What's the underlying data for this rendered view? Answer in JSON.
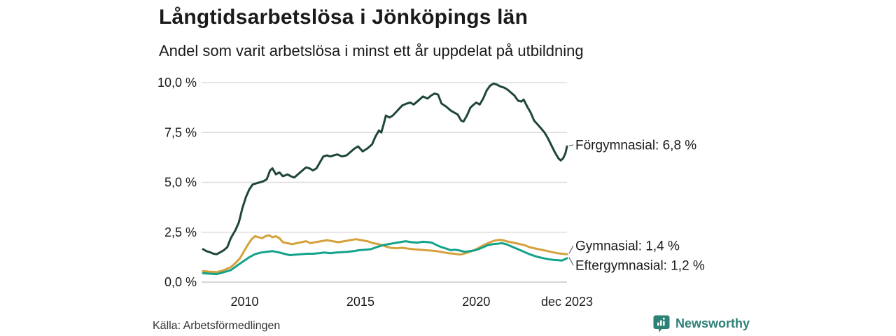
{
  "header": {
    "title": "Långtidsarbetslösa i Jönköpings län",
    "subtitle": "Andel som varit arbetslösa i minst ett år uppdelat på utbildning"
  },
  "footer": {
    "source": "Källa: Arbetsförmedlingen",
    "brand": "Newsworthy"
  },
  "colors": {
    "forgymnasial": "#1e4639",
    "gymnasial": "#d4a13c",
    "eftergymnasial": "#13a28a",
    "gridline": "#dedede",
    "zero_line": "#c9c9c9",
    "text": "#1a1a1a",
    "connector": "#666666",
    "brand_teal": "#2e8177"
  },
  "chart_data": {
    "type": "line",
    "title": "Långtidsarbetslösa i Jönköpings län",
    "subtitle": "Andel som varit arbetslösa i minst ett år uppdelat på utbildning",
    "xlabel": "",
    "ylabel": "",
    "xlim": [
      2008.2,
      2023.92
    ],
    "ylim": [
      0,
      10
    ],
    "grid": "horizontal",
    "legend_position": "end-of-line-labels",
    "yticks": [
      {
        "value": 0,
        "label": "0,0 %"
      },
      {
        "value": 2.5,
        "label": "2,5 %"
      },
      {
        "value": 5,
        "label": "5,0 %"
      },
      {
        "value": 7.5,
        "label": "7,5 %"
      },
      {
        "value": 10,
        "label": "10,0 %"
      }
    ],
    "xticks": [
      {
        "value": 2010,
        "label": "2010"
      },
      {
        "value": 2015,
        "label": "2015"
      },
      {
        "value": 2020,
        "label": "2020"
      },
      {
        "value": 2023.92,
        "label": "dec 2023"
      }
    ],
    "series": [
      {
        "name": "Förgymnasial",
        "end_value": "6,8 %",
        "end_label": "Förgymnasial: 6,8 %",
        "color": "#1e4639",
        "points": [
          [
            2008.2,
            1.65
          ],
          [
            2008.35,
            1.55
          ],
          [
            2008.5,
            1.5
          ],
          [
            2008.65,
            1.42
          ],
          [
            2008.8,
            1.4
          ],
          [
            2008.95,
            1.5
          ],
          [
            2009.1,
            1.6
          ],
          [
            2009.25,
            1.75
          ],
          [
            2009.4,
            2.2
          ],
          [
            2009.6,
            2.6
          ],
          [
            2009.75,
            3.0
          ],
          [
            2009.9,
            3.7
          ],
          [
            2010.05,
            4.25
          ],
          [
            2010.2,
            4.65
          ],
          [
            2010.35,
            4.9
          ],
          [
            2010.5,
            4.95
          ],
          [
            2010.65,
            5.0
          ],
          [
            2010.8,
            5.05
          ],
          [
            2010.95,
            5.15
          ],
          [
            2011.1,
            5.6
          ],
          [
            2011.2,
            5.7
          ],
          [
            2011.35,
            5.4
          ],
          [
            2011.5,
            5.5
          ],
          [
            2011.65,
            5.3
          ],
          [
            2011.85,
            5.4
          ],
          [
            2012.0,
            5.3
          ],
          [
            2012.15,
            5.25
          ],
          [
            2012.3,
            5.4
          ],
          [
            2012.5,
            5.6
          ],
          [
            2012.65,
            5.75
          ],
          [
            2012.8,
            5.7
          ],
          [
            2012.95,
            5.6
          ],
          [
            2013.1,
            5.7
          ],
          [
            2013.25,
            6.0
          ],
          [
            2013.4,
            6.3
          ],
          [
            2013.55,
            6.35
          ],
          [
            2013.7,
            6.3
          ],
          [
            2013.85,
            6.35
          ],
          [
            2014.0,
            6.4
          ],
          [
            2014.2,
            6.3
          ],
          [
            2014.4,
            6.35
          ],
          [
            2014.6,
            6.55
          ],
          [
            2014.75,
            6.7
          ],
          [
            2014.9,
            6.8
          ],
          [
            2015.1,
            6.55
          ],
          [
            2015.3,
            6.7
          ],
          [
            2015.5,
            6.9
          ],
          [
            2015.65,
            7.3
          ],
          [
            2015.8,
            7.6
          ],
          [
            2015.9,
            7.5
          ],
          [
            2016.0,
            7.9
          ],
          [
            2016.1,
            8.35
          ],
          [
            2016.25,
            8.25
          ],
          [
            2016.4,
            8.35
          ],
          [
            2016.6,
            8.6
          ],
          [
            2016.8,
            8.85
          ],
          [
            2017.0,
            8.95
          ],
          [
            2017.15,
            9.0
          ],
          [
            2017.3,
            8.9
          ],
          [
            2017.5,
            9.1
          ],
          [
            2017.7,
            9.3
          ],
          [
            2017.9,
            9.2
          ],
          [
            2018.05,
            9.35
          ],
          [
            2018.2,
            9.45
          ],
          [
            2018.35,
            9.4
          ],
          [
            2018.5,
            8.95
          ],
          [
            2018.7,
            8.8
          ],
          [
            2018.9,
            8.6
          ],
          [
            2019.05,
            8.5
          ],
          [
            2019.2,
            8.4
          ],
          [
            2019.35,
            8.1
          ],
          [
            2019.45,
            8.05
          ],
          [
            2019.6,
            8.35
          ],
          [
            2019.75,
            8.75
          ],
          [
            2019.9,
            8.9
          ],
          [
            2020.0,
            9.0
          ],
          [
            2020.15,
            8.9
          ],
          [
            2020.3,
            9.2
          ],
          [
            2020.45,
            9.6
          ],
          [
            2020.6,
            9.85
          ],
          [
            2020.75,
            9.95
          ],
          [
            2020.9,
            9.9
          ],
          [
            2021.05,
            9.8
          ],
          [
            2021.2,
            9.75
          ],
          [
            2021.35,
            9.65
          ],
          [
            2021.5,
            9.5
          ],
          [
            2021.65,
            9.35
          ],
          [
            2021.8,
            9.1
          ],
          [
            2021.95,
            9.05
          ],
          [
            2022.05,
            9.15
          ],
          [
            2022.2,
            8.8
          ],
          [
            2022.35,
            8.5
          ],
          [
            2022.5,
            8.1
          ],
          [
            2022.65,
            7.9
          ],
          [
            2022.8,
            7.7
          ],
          [
            2022.95,
            7.5
          ],
          [
            2023.1,
            7.2
          ],
          [
            2023.25,
            6.85
          ],
          [
            2023.4,
            6.5
          ],
          [
            2023.55,
            6.2
          ],
          [
            2023.65,
            6.1
          ],
          [
            2023.75,
            6.2
          ],
          [
            2023.85,
            6.45
          ],
          [
            2023.92,
            6.8
          ]
        ]
      },
      {
        "name": "Gymnasial",
        "end_value": "1,4 %",
        "end_label": "Gymnasial: 1,4 %",
        "color": "#d4a13c",
        "points": [
          [
            2008.2,
            0.55
          ],
          [
            2008.5,
            0.52
          ],
          [
            2008.8,
            0.5
          ],
          [
            2009.1,
            0.6
          ],
          [
            2009.4,
            0.75
          ],
          [
            2009.6,
            0.95
          ],
          [
            2009.8,
            1.2
          ],
          [
            2010.0,
            1.6
          ],
          [
            2010.15,
            1.9
          ],
          [
            2010.3,
            2.15
          ],
          [
            2010.45,
            2.3
          ],
          [
            2010.6,
            2.25
          ],
          [
            2010.75,
            2.2
          ],
          [
            2010.9,
            2.3
          ],
          [
            2011.05,
            2.35
          ],
          [
            2011.2,
            2.25
          ],
          [
            2011.35,
            2.3
          ],
          [
            2011.5,
            2.2
          ],
          [
            2011.65,
            2.0
          ],
          [
            2011.85,
            1.95
          ],
          [
            2012.05,
            1.9
          ],
          [
            2012.25,
            1.95
          ],
          [
            2012.45,
            2.0
          ],
          [
            2012.65,
            2.05
          ],
          [
            2012.85,
            1.95
          ],
          [
            2013.05,
            2.0
          ],
          [
            2013.3,
            2.05
          ],
          [
            2013.55,
            2.1
          ],
          [
            2013.8,
            2.05
          ],
          [
            2014.05,
            2.0
          ],
          [
            2014.3,
            2.05
          ],
          [
            2014.55,
            2.1
          ],
          [
            2014.8,
            2.15
          ],
          [
            2015.05,
            2.1
          ],
          [
            2015.3,
            2.05
          ],
          [
            2015.55,
            1.95
          ],
          [
            2015.8,
            1.9
          ],
          [
            2016.05,
            1.8
          ],
          [
            2016.3,
            1.72
          ],
          [
            2016.55,
            1.7
          ],
          [
            2016.8,
            1.72
          ],
          [
            2017.05,
            1.68
          ],
          [
            2017.3,
            1.65
          ],
          [
            2017.55,
            1.62
          ],
          [
            2017.8,
            1.6
          ],
          [
            2018.05,
            1.58
          ],
          [
            2018.3,
            1.55
          ],
          [
            2018.55,
            1.5
          ],
          [
            2018.8,
            1.45
          ],
          [
            2019.05,
            1.42
          ],
          [
            2019.3,
            1.38
          ],
          [
            2019.55,
            1.45
          ],
          [
            2019.8,
            1.55
          ],
          [
            2020.0,
            1.65
          ],
          [
            2020.2,
            1.78
          ],
          [
            2020.4,
            1.9
          ],
          [
            2020.6,
            2.0
          ],
          [
            2020.8,
            2.08
          ],
          [
            2021.0,
            2.12
          ],
          [
            2021.15,
            2.1
          ],
          [
            2021.3,
            2.05
          ],
          [
            2021.5,
            2.0
          ],
          [
            2021.7,
            1.95
          ],
          [
            2021.9,
            1.9
          ],
          [
            2022.1,
            1.85
          ],
          [
            2022.3,
            1.75
          ],
          [
            2022.5,
            1.7
          ],
          [
            2022.7,
            1.65
          ],
          [
            2022.9,
            1.6
          ],
          [
            2023.1,
            1.55
          ],
          [
            2023.3,
            1.5
          ],
          [
            2023.5,
            1.45
          ],
          [
            2023.7,
            1.42
          ],
          [
            2023.92,
            1.4
          ]
        ]
      },
      {
        "name": "Eftergymnasial",
        "end_value": "1,2 %",
        "end_label": "Eftergymnasial: 1,2 %",
        "color": "#13a28a",
        "points": [
          [
            2008.2,
            0.45
          ],
          [
            2008.5,
            0.42
          ],
          [
            2008.8,
            0.4
          ],
          [
            2009.1,
            0.5
          ],
          [
            2009.4,
            0.6
          ],
          [
            2009.7,
            0.85
          ],
          [
            2009.95,
            1.05
          ],
          [
            2010.2,
            1.25
          ],
          [
            2010.45,
            1.4
          ],
          [
            2010.7,
            1.48
          ],
          [
            2010.95,
            1.52
          ],
          [
            2011.2,
            1.55
          ],
          [
            2011.45,
            1.5
          ],
          [
            2011.7,
            1.42
          ],
          [
            2011.95,
            1.35
          ],
          [
            2012.2,
            1.38
          ],
          [
            2012.45,
            1.4
          ],
          [
            2012.7,
            1.42
          ],
          [
            2012.95,
            1.42
          ],
          [
            2013.2,
            1.45
          ],
          [
            2013.45,
            1.48
          ],
          [
            2013.7,
            1.45
          ],
          [
            2013.95,
            1.48
          ],
          [
            2014.2,
            1.5
          ],
          [
            2014.45,
            1.52
          ],
          [
            2014.7,
            1.55
          ],
          [
            2014.95,
            1.6
          ],
          [
            2015.2,
            1.62
          ],
          [
            2015.45,
            1.65
          ],
          [
            2015.7,
            1.75
          ],
          [
            2015.95,
            1.85
          ],
          [
            2016.2,
            1.9
          ],
          [
            2016.45,
            1.95
          ],
          [
            2016.7,
            2.0
          ],
          [
            2016.95,
            2.05
          ],
          [
            2017.2,
            2.0
          ],
          [
            2017.45,
            1.98
          ],
          [
            2017.7,
            2.02
          ],
          [
            2017.95,
            2.0
          ],
          [
            2018.1,
            1.97
          ],
          [
            2018.3,
            1.85
          ],
          [
            2018.5,
            1.75
          ],
          [
            2018.7,
            1.68
          ],
          [
            2018.9,
            1.6
          ],
          [
            2019.1,
            1.62
          ],
          [
            2019.3,
            1.58
          ],
          [
            2019.5,
            1.52
          ],
          [
            2019.7,
            1.55
          ],
          [
            2019.9,
            1.58
          ],
          [
            2020.1,
            1.65
          ],
          [
            2020.3,
            1.75
          ],
          [
            2020.5,
            1.85
          ],
          [
            2020.7,
            1.9
          ],
          [
            2020.9,
            1.92
          ],
          [
            2021.1,
            1.95
          ],
          [
            2021.3,
            1.9
          ],
          [
            2021.5,
            1.8
          ],
          [
            2021.7,
            1.7
          ],
          [
            2021.9,
            1.6
          ],
          [
            2022.1,
            1.5
          ],
          [
            2022.3,
            1.4
          ],
          [
            2022.5,
            1.32
          ],
          [
            2022.7,
            1.25
          ],
          [
            2022.9,
            1.2
          ],
          [
            2023.1,
            1.15
          ],
          [
            2023.3,
            1.12
          ],
          [
            2023.5,
            1.1
          ],
          [
            2023.7,
            1.08
          ],
          [
            2023.85,
            1.15
          ],
          [
            2023.92,
            1.2
          ]
        ]
      }
    ]
  }
}
